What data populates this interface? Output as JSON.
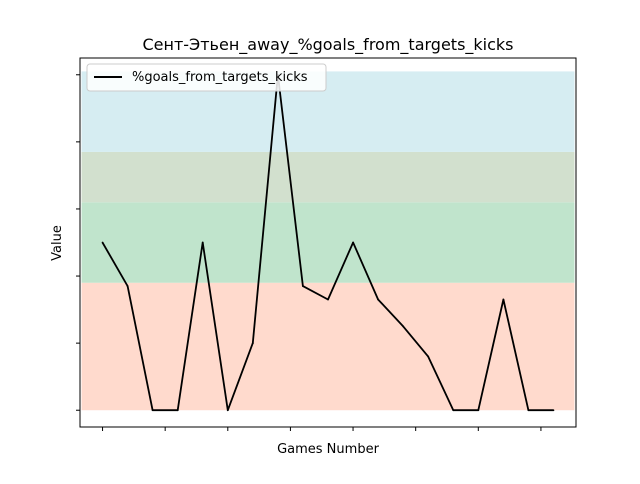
{
  "chart_data": {
    "type": "line",
    "title": "Сент-Этьен_away_%goals_from_targets_kicks",
    "xlabel": "Games Number",
    "ylabel": "Value",
    "x": [
      1,
      2,
      3,
      4,
      5,
      6,
      7,
      8,
      9,
      10,
      11,
      12,
      13,
      14,
      15,
      16,
      17,
      18,
      19
    ],
    "xlim": [
      0.1,
      19.9
    ],
    "ylim": [
      -0.05,
      1.05
    ],
    "series": [
      {
        "name": "%goals_from_targets_kicks",
        "color": "#000000",
        "values": [
          0.5,
          0.37,
          0.0,
          0.0,
          0.5,
          0.0,
          0.2,
          1.0,
          0.37,
          0.33,
          0.5,
          0.33,
          0.25,
          0.16,
          0.0,
          0.0,
          0.33,
          0.0,
          0.0
        ]
      }
    ],
    "bands": [
      {
        "from": 0.0,
        "to": 0.38,
        "color": "#ffdacd"
      },
      {
        "from": 0.38,
        "to": 0.62,
        "color": "#c0e4cc"
      },
      {
        "from": 0.62,
        "to": 0.77,
        "color": "#d2e0ce"
      },
      {
        "from": 0.77,
        "to": 1.01,
        "color": "#d6edf2"
      }
    ],
    "x_ticks": [
      1,
      3.5,
      6,
      8.5,
      11,
      13.5,
      16,
      18.5
    ],
    "y_ticks": [
      0.0,
      0.2,
      0.4,
      0.6,
      0.8,
      1.0
    ],
    "tick_labels_visible": false,
    "grid": false,
    "legend_position": "top-left"
  }
}
